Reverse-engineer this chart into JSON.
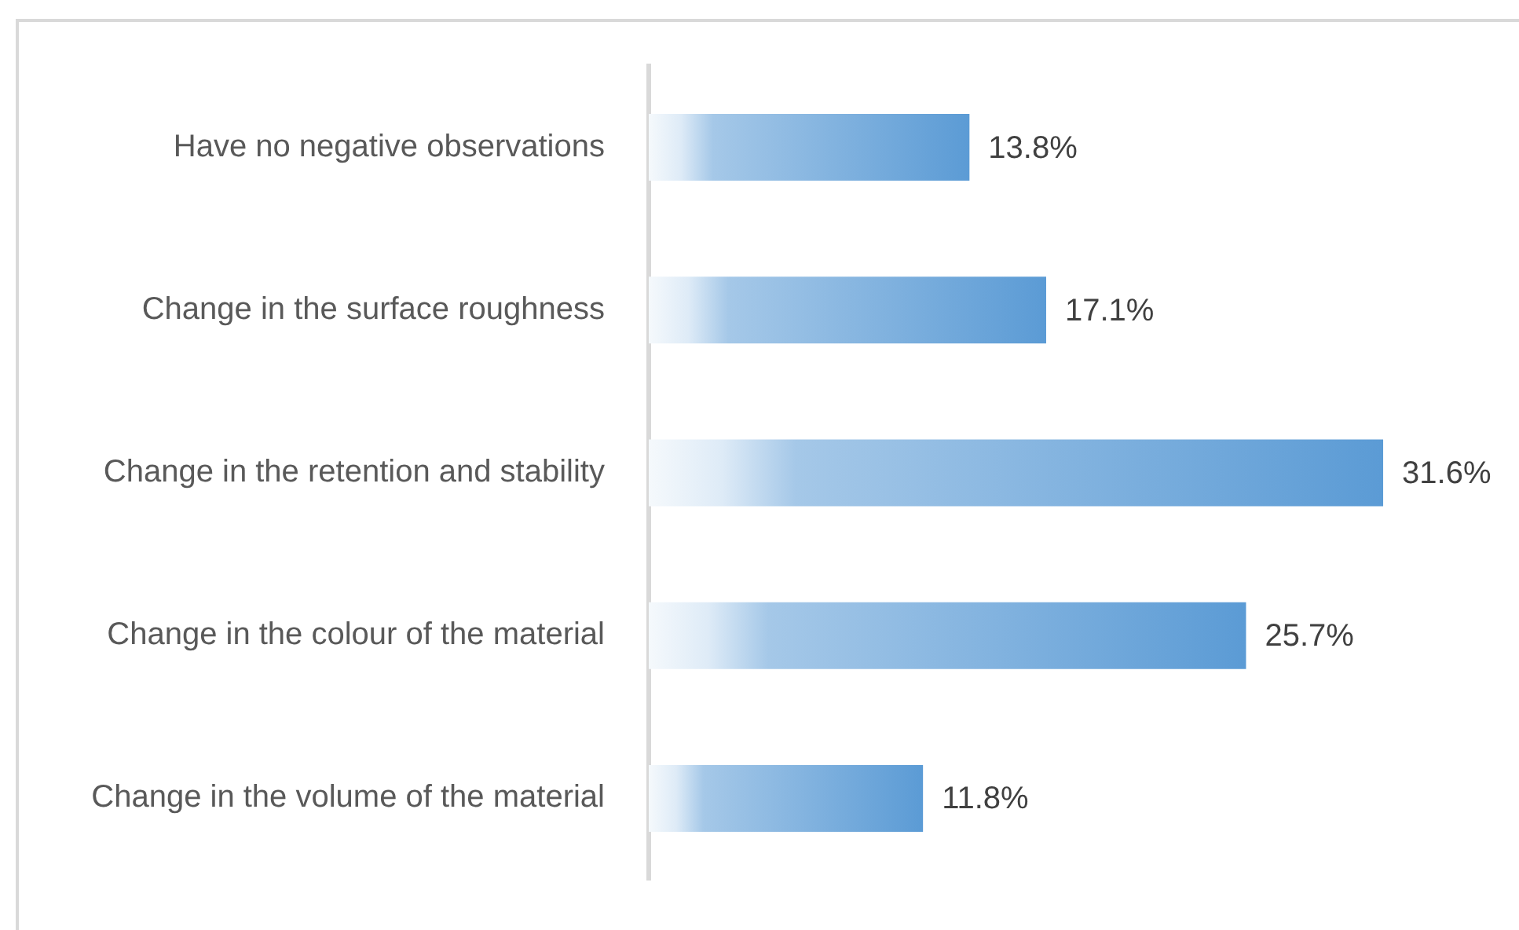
{
  "chart_data": {
    "type": "bar",
    "orientation": "horizontal",
    "categories": [
      "Have no negative observations",
      "Change in the surface roughness",
      "Change in the retention and stability",
      "Change in the colour of the material",
      "Change in the volume of the material"
    ],
    "values": [
      13.8,
      17.1,
      31.6,
      25.7,
      11.8
    ],
    "color": "#5b9bd5",
    "value_labels": [
      "13.8%",
      "17.1%",
      "31.6%",
      "25.7%",
      "11.8%"
    ],
    "tick_labels": "y"
  }
}
